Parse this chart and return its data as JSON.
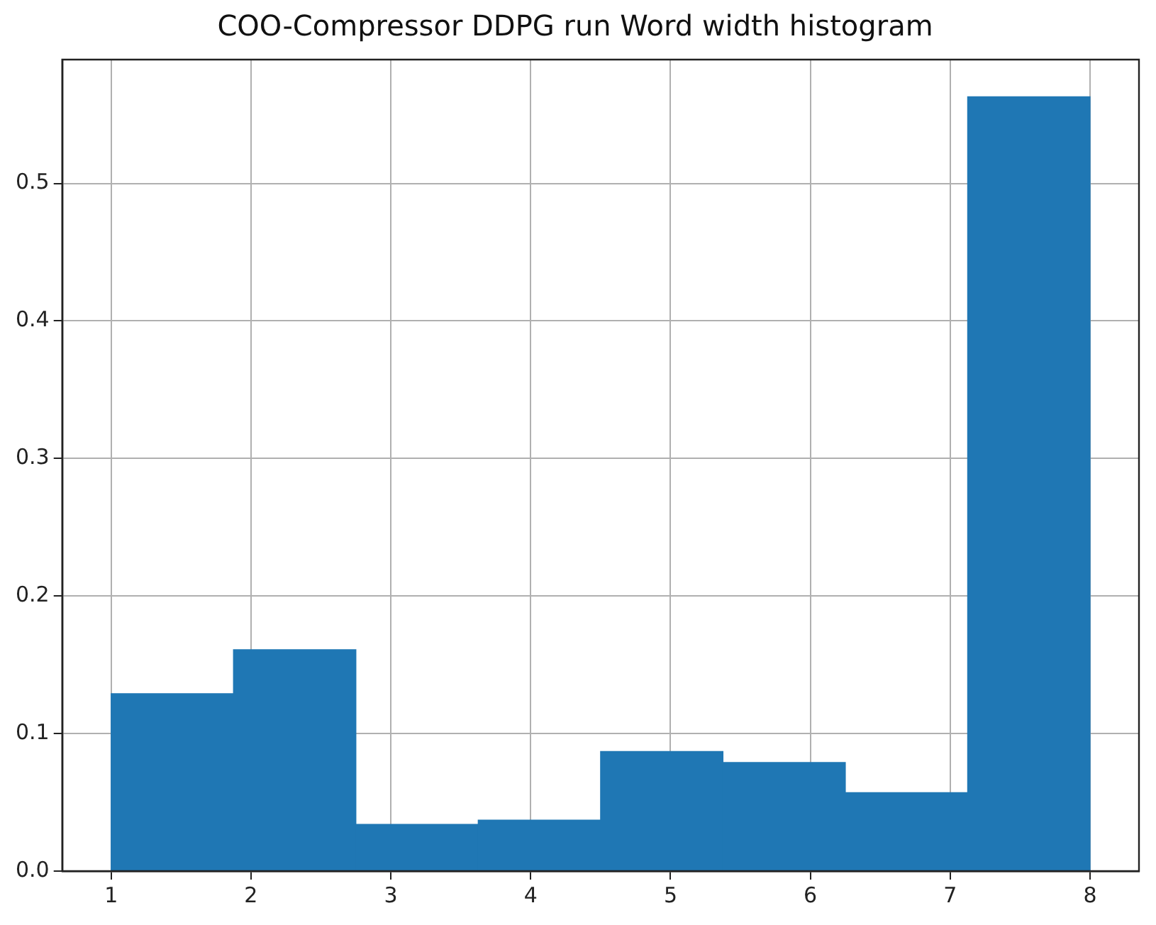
{
  "chart_data": {
    "type": "histogram",
    "title": "COO-Compressor DDPG run Word width histogram",
    "bins": [
      1,
      1.875,
      2.75,
      3.625,
      4.5,
      5.375,
      6.25,
      7.125,
      8
    ],
    "values": [
      0.129,
      0.161,
      0.034,
      0.037,
      0.087,
      0.079,
      0.057,
      0.563
    ],
    "color": "#1f77b4",
    "xlim": [
      0.65,
      8.35
    ],
    "xticks": [
      1,
      2,
      3,
      4,
      5,
      6,
      7,
      8
    ],
    "ylim": [
      0,
      0.59
    ],
    "yticks": [
      {
        "value": 0,
        "label": "0.0"
      },
      0.1,
      0.2,
      0.3,
      0.4,
      0.5
    ],
    "grid": true
  }
}
